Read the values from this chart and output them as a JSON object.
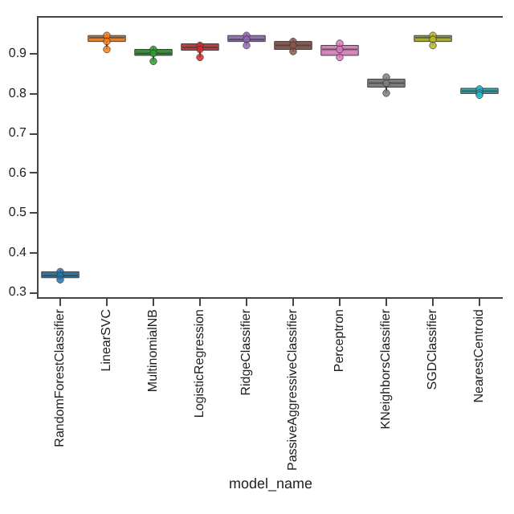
{
  "chart_data": {
    "type": "box",
    "xlabel": "model_name",
    "categories": [
      "RandomForestClassifier",
      "LinearSVC",
      "MultinomialNB",
      "LogisticRegression",
      "RidgeClassifier",
      "PassiveAggressiveClassifier",
      "Perceptron",
      "KNeighborsClassifier",
      "SGDClassifier",
      "NearestCentroid"
    ],
    "ylim": [
      0.286,
      0.994
    ],
    "yticks": [
      0.3,
      0.4,
      0.5,
      0.6,
      0.7,
      0.8,
      0.9
    ],
    "grid": false,
    "series": [
      {
        "type": "box",
        "colors": [
          "#3274a1",
          "#e1812c",
          "#3a923a",
          "#c03d3e",
          "#9372b2",
          "#845b53",
          "#d684bd",
          "#7f7f7f",
          "#a9aa35",
          "#2eabb8"
        ],
        "boxes": [
          {
            "low": 0.33,
            "q1": 0.335,
            "median": 0.34,
            "q3": 0.35,
            "high": 0.355
          },
          {
            "low": 0.91,
            "q1": 0.93,
            "median": 0.94,
            "q3": 0.945,
            "high": 0.95
          },
          {
            "low": 0.88,
            "q1": 0.895,
            "median": 0.9,
            "q3": 0.91,
            "high": 0.915
          },
          {
            "low": 0.89,
            "q1": 0.908,
            "median": 0.915,
            "q3": 0.924,
            "high": 0.928
          },
          {
            "low": 0.92,
            "q1": 0.93,
            "median": 0.935,
            "q3": 0.945,
            "high": 0.95
          },
          {
            "low": 0.905,
            "q1": 0.91,
            "median": 0.92,
            "q3": 0.93,
            "high": 0.935
          },
          {
            "low": 0.89,
            "q1": 0.895,
            "median": 0.91,
            "q3": 0.92,
            "high": 0.925
          },
          {
            "low": 0.8,
            "q1": 0.815,
            "median": 0.825,
            "q3": 0.835,
            "high": 0.84
          },
          {
            "low": 0.92,
            "q1": 0.93,
            "median": 0.94,
            "q3": 0.945,
            "high": 0.95
          },
          {
            "low": 0.795,
            "q1": 0.799,
            "median": 0.805,
            "q3": 0.812,
            "high": 0.815
          }
        ]
      },
      {
        "type": "scatter",
        "marker": "circle",
        "x": [
          "RandomForestClassifier",
          "RandomForestClassifier",
          "RandomForestClassifier",
          "LinearSVC",
          "LinearSVC",
          "LinearSVC",
          "MultinomialNB",
          "MultinomialNB",
          "MultinomialNB",
          "LogisticRegression",
          "LogisticRegression",
          "LogisticRegression",
          "RidgeClassifier",
          "RidgeClassifier",
          "RidgeClassifier",
          "PassiveAggressiveClassifier",
          "PassiveAggressiveClassifier",
          "PassiveAggressiveClassifier",
          "Perceptron",
          "Perceptron",
          "Perceptron",
          "KNeighborsClassifier",
          "KNeighborsClassifier",
          "KNeighborsClassifier",
          "SGDClassifier",
          "SGDClassifier",
          "SGDClassifier",
          "NearestCentroid",
          "NearestCentroid",
          "NearestCentroid"
        ],
        "values": [
          0.35,
          0.34,
          0.33,
          0.945,
          0.93,
          0.91,
          0.91,
          0.9,
          0.88,
          0.92,
          0.91,
          0.89,
          0.945,
          0.935,
          0.92,
          0.93,
          0.92,
          0.905,
          0.925,
          0.91,
          0.89,
          0.84,
          0.825,
          0.8,
          0.945,
          0.935,
          0.92,
          0.81,
          0.8,
          0.795
        ],
        "colors": [
          "#1f77b4",
          "#1f77b4",
          "#1f77b4",
          "#ff7f0e",
          "#ff7f0e",
          "#ff7f0e",
          "#2ca02c",
          "#2ca02c",
          "#2ca02c",
          "#d62728",
          "#d62728",
          "#d62728",
          "#9467bd",
          "#9467bd",
          "#9467bd",
          "#8c564b",
          "#8c564b",
          "#8c564b",
          "#e377c2",
          "#e377c2",
          "#e377c2",
          "#7f7f7f",
          "#7f7f7f",
          "#7f7f7f",
          "#bcbd22",
          "#bcbd22",
          "#bcbd22",
          "#17becf",
          "#17becf",
          "#17becf"
        ]
      }
    ]
  }
}
